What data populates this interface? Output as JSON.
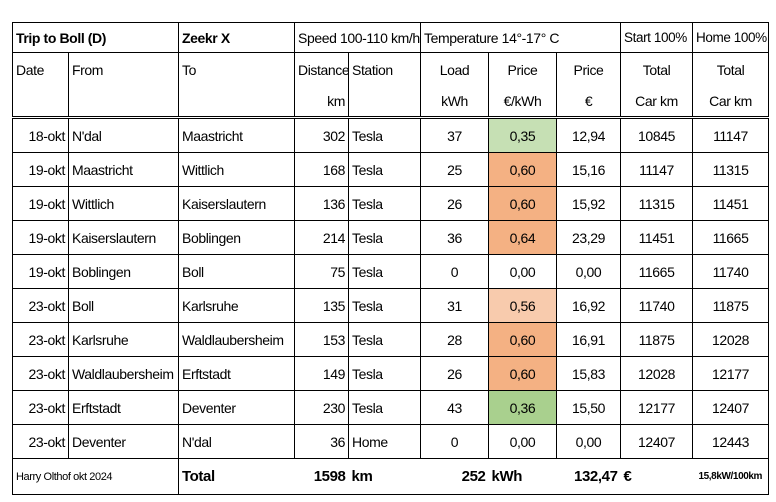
{
  "header": {
    "title": "Trip to Boll (D)",
    "car": "Zeekr X",
    "speed": "Speed 100-110 km/h",
    "temperature": "Temperature 14°-17° C",
    "start": "Start 100%",
    "home": "Home 100%"
  },
  "table": {
    "columns": [
      {
        "label": "Date"
      },
      {
        "label": "From"
      },
      {
        "label": "To"
      },
      {
        "label": "Distance",
        "unit": "km"
      },
      {
        "label": "Station"
      },
      {
        "label": "Load",
        "unit": "kWh"
      },
      {
        "label": "Price",
        "unit": "€/kWh"
      },
      {
        "label": "Price",
        "unit": "€"
      },
      {
        "label": "Total",
        "unit": "Car km"
      },
      {
        "label": "Total",
        "unit": "Car km"
      }
    ],
    "rows": [
      [
        "18-okt",
        "N'dal",
        "Maastricht",
        "302",
        "Tesla",
        "37",
        "0,35",
        "12,94",
        "10845",
        "11147"
      ],
      [
        "19-okt",
        "Maastricht",
        "Wittlich",
        "168",
        "Tesla",
        "25",
        "0,60",
        "15,16",
        "11147",
        "11315"
      ],
      [
        "19-okt",
        "Wittlich",
        "Kaiserslautern",
        "136",
        "Tesla",
        "26",
        "0,60",
        "15,92",
        "11315",
        "11451"
      ],
      [
        "19-okt",
        "Kaiserslautern",
        "Boblingen",
        "214",
        "Tesla",
        "36",
        "0,64",
        "23,29",
        "11451",
        "11665"
      ],
      [
        "19-okt",
        "Boblingen",
        "Boll",
        "75",
        "Tesla",
        "0",
        "0,00",
        "0,00",
        "11665",
        "11740"
      ],
      [
        "23-okt",
        "Boll",
        "Karlsruhe",
        "135",
        "Tesla",
        "31",
        "0,56",
        "16,92",
        "11740",
        "11875"
      ],
      [
        "23-okt",
        "Karlsruhe",
        "Waldlaubersheim",
        "153",
        "Tesla",
        "28",
        "0,60",
        "16,91",
        "11875",
        "12028"
      ],
      [
        "23-okt",
        "Waldlaubersheim",
        "Erftstadt",
        "149",
        "Tesla",
        "26",
        "0,60",
        "15,83",
        "12028",
        "12177"
      ],
      [
        "23-okt",
        "Erftstadt",
        "Deventer",
        "230",
        "Tesla",
        "43",
        "0,36",
        "15,50",
        "12177",
        "12407"
      ],
      [
        "23-okt",
        "Deventer",
        "N'dal",
        "36",
        "Home",
        "0",
        "0,00",
        "0,00",
        "12407",
        "12443"
      ]
    ],
    "price_colors": [
      "#c6e0b4",
      "#f4b183",
      "#f4b183",
      "#f4b183",
      null,
      "#f8cbad",
      "#f4b183",
      "#f4b183",
      "#a9d08e",
      null
    ]
  },
  "footer": {
    "author": "Harry Olthof okt 2024",
    "total_label": "Total",
    "distance": "1598",
    "distance_unit": "km",
    "load": "252",
    "load_unit": "kWh",
    "cost": "132,47",
    "currency": "€",
    "consumption": "15,8kW/100km"
  }
}
